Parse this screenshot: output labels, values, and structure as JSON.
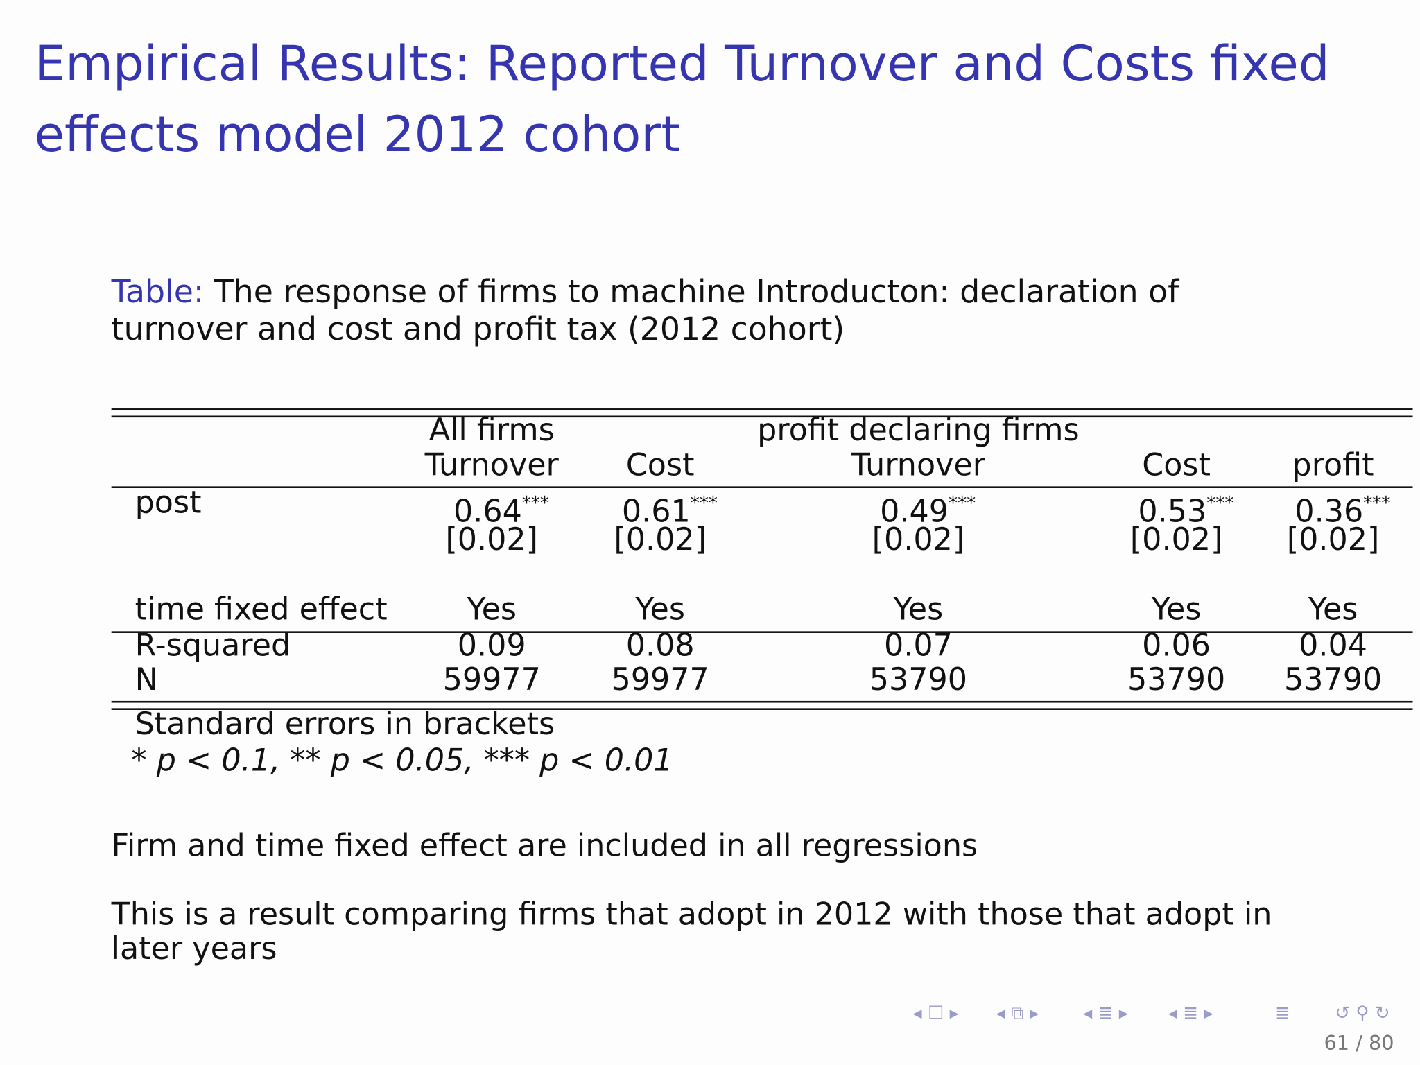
{
  "title": {
    "line1": "Empirical Results: Reported Turnover and Costs fixed",
    "line2": "effects model 2012 cohort"
  },
  "caption": {
    "label": "Table:",
    "line1": "The response of firms to machine Introducton: declaration of",
    "line2": "turnover and cost and profit tax (2012 cohort)"
  },
  "table": {
    "groups": [
      "All firms",
      "profit declaring firms"
    ],
    "columns": [
      "Turnover",
      "Cost",
      "Turnover",
      "Cost",
      "profit"
    ],
    "rows": {
      "post": {
        "label": "post",
        "coef": [
          "0.64",
          "0.61",
          "0.49",
          "0.53",
          "0.36"
        ],
        "stars": [
          "***",
          "***",
          "***",
          "***",
          "***"
        ],
        "se": [
          "[0.02]",
          "[0.02]",
          "[0.02]",
          "[0.02]",
          "[0.02]"
        ]
      },
      "tfe": {
        "label": "time fixed effect",
        "values": [
          "Yes",
          "Yes",
          "Yes",
          "Yes",
          "Yes"
        ]
      },
      "r2": {
        "label": "R-squared",
        "values": [
          "0.09",
          "0.08",
          "0.07",
          "0.06",
          "0.04"
        ]
      },
      "n": {
        "label": "N",
        "values": [
          "59977",
          "59977",
          "53790",
          "53790",
          "53790"
        ]
      }
    },
    "notes": {
      "line1": "Standard errors in brackets",
      "line2": "* p < 0.1, ** p < 0.05, *** p < 0.01"
    }
  },
  "body": {
    "p1": "Firm and time fixed effect are included in all regressions",
    "p2_line1": "This is a result comparing firms that adopt in 2012 with those that adopt in",
    "p2_line2": "later years"
  },
  "footer": {
    "page": "61 / 80",
    "nav_icons": [
      "frame-nav-icon",
      "subsection-nav-icon",
      "section-nav-icon",
      "document-nav-icon",
      "align-icon",
      "search-back-forward-icon"
    ]
  }
}
